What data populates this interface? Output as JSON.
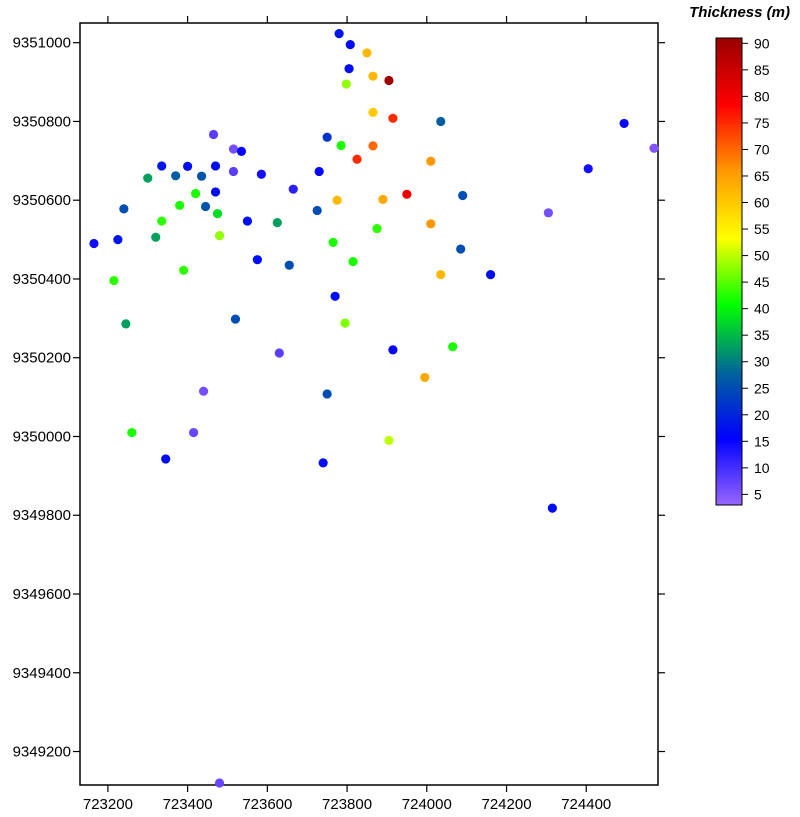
{
  "chart_data": {
    "type": "scatter",
    "xticks": [
      "723200",
      "723400",
      "723600",
      "723800",
      "724000",
      "724200",
      "724400"
    ],
    "yticks": [
      "9351000",
      "9350800",
      "9350600",
      "9350400",
      "9350200",
      "9350000",
      "9349800",
      "9349600",
      "9349400",
      "9349200"
    ],
    "xlim": [
      723130,
      724580
    ],
    "ylim": [
      9349115,
      9351050
    ],
    "colorbar": {
      "title": "Thickness (m)",
      "ticks": [
        "90",
        "85",
        "80",
        "75",
        "70",
        "65",
        "60",
        "55",
        "50",
        "45",
        "40",
        "35",
        "30",
        "25",
        "20",
        "15",
        "10",
        "5"
      ],
      "range": [
        3,
        91
      ],
      "colors": [
        "#9966FF",
        "#0000FF",
        "#006699",
        "#00FF00",
        "#FFFF00",
        "#FF9900",
        "#FF0000",
        "#990000"
      ]
    },
    "points": [
      {
        "x": 723780,
        "y": 9351023,
        "t": 18
      },
      {
        "x": 723808,
        "y": 9350995,
        "t": 17
      },
      {
        "x": 723850,
        "y": 9350974,
        "t": 62
      },
      {
        "x": 723805,
        "y": 9350934,
        "t": 17
      },
      {
        "x": 723865,
        "y": 9350915,
        "t": 62
      },
      {
        "x": 723905,
        "y": 9350904,
        "t": 90
      },
      {
        "x": 723798,
        "y": 9350895,
        "t": 48
      },
      {
        "x": 723865,
        "y": 9350823,
        "t": 60
      },
      {
        "x": 723915,
        "y": 9350808,
        "t": 75
      },
      {
        "x": 724035,
        "y": 9350800,
        "t": 27
      },
      {
        "x": 724495,
        "y": 9350795,
        "t": 15
      },
      {
        "x": 723465,
        "y": 9350767,
        "t": 8
      },
      {
        "x": 723750,
        "y": 9350760,
        "t": 22
      },
      {
        "x": 724570,
        "y": 9350732,
        "t": 5
      },
      {
        "x": 723785,
        "y": 9350739,
        "t": 42
      },
      {
        "x": 723865,
        "y": 9350738,
        "t": 70
      },
      {
        "x": 723515,
        "y": 9350730,
        "t": 6
      },
      {
        "x": 723535,
        "y": 9350724,
        "t": 15
      },
      {
        "x": 723825,
        "y": 9350704,
        "t": 75
      },
      {
        "x": 724010,
        "y": 9350699,
        "t": 66
      },
      {
        "x": 723335,
        "y": 9350687,
        "t": 18
      },
      {
        "x": 723400,
        "y": 9350686,
        "t": 17
      },
      {
        "x": 723470,
        "y": 9350687,
        "t": 17
      },
      {
        "x": 724405,
        "y": 9350680,
        "t": 14
      },
      {
        "x": 723515,
        "y": 9350673,
        "t": 8
      },
      {
        "x": 723730,
        "y": 9350673,
        "t": 15
      },
      {
        "x": 723300,
        "y": 9350656,
        "t": 33
      },
      {
        "x": 723370,
        "y": 9350662,
        "t": 27
      },
      {
        "x": 723435,
        "y": 9350661,
        "t": 26
      },
      {
        "x": 723585,
        "y": 9350666,
        "t": 14
      },
      {
        "x": 723665,
        "y": 9350628,
        "t": 12
      },
      {
        "x": 723470,
        "y": 9350621,
        "t": 17
      },
      {
        "x": 723420,
        "y": 9350617,
        "t": 42
      },
      {
        "x": 723950,
        "y": 9350615,
        "t": 80
      },
      {
        "x": 724090,
        "y": 9350612,
        "t": 25
      },
      {
        "x": 723890,
        "y": 9350602,
        "t": 64
      },
      {
        "x": 723775,
        "y": 9350600,
        "t": 62
      },
      {
        "x": 723445,
        "y": 9350584,
        "t": 26
      },
      {
        "x": 723380,
        "y": 9350587,
        "t": 42
      },
      {
        "x": 723240,
        "y": 9350578,
        "t": 25
      },
      {
        "x": 723725,
        "y": 9350574,
        "t": 25
      },
      {
        "x": 724305,
        "y": 9350568,
        "t": 6
      },
      {
        "x": 723475,
        "y": 9350566,
        "t": 38
      },
      {
        "x": 723335,
        "y": 9350547,
        "t": 43
      },
      {
        "x": 723550,
        "y": 9350547,
        "t": 17
      },
      {
        "x": 723625,
        "y": 9350543,
        "t": 33
      },
      {
        "x": 724010,
        "y": 9350540,
        "t": 66
      },
      {
        "x": 723875,
        "y": 9350528,
        "t": 43
      },
      {
        "x": 723320,
        "y": 9350506,
        "t": 33
      },
      {
        "x": 723480,
        "y": 9350510,
        "t": 48
      },
      {
        "x": 723225,
        "y": 9350500,
        "t": 18
      },
      {
        "x": 723765,
        "y": 9350493,
        "t": 42
      },
      {
        "x": 723165,
        "y": 9350490,
        "t": 14
      },
      {
        "x": 724085,
        "y": 9350476,
        "t": 25
      },
      {
        "x": 723575,
        "y": 9350449,
        "t": 17
      },
      {
        "x": 723815,
        "y": 9350444,
        "t": 42
      },
      {
        "x": 723655,
        "y": 9350435,
        "t": 25
      },
      {
        "x": 723390,
        "y": 9350422,
        "t": 43
      },
      {
        "x": 724035,
        "y": 9350411,
        "t": 62
      },
      {
        "x": 724160,
        "y": 9350411,
        "t": 17
      },
      {
        "x": 723215,
        "y": 9350396,
        "t": 43
      },
      {
        "x": 723770,
        "y": 9350356,
        "t": 17
      },
      {
        "x": 723520,
        "y": 9350298,
        "t": 25
      },
      {
        "x": 723245,
        "y": 9350286,
        "t": 33
      },
      {
        "x": 723795,
        "y": 9350288,
        "t": 47
      },
      {
        "x": 724065,
        "y": 9350228,
        "t": 42
      },
      {
        "x": 723915,
        "y": 9350220,
        "t": 15
      },
      {
        "x": 723630,
        "y": 9350212,
        "t": 8
      },
      {
        "x": 723995,
        "y": 9350150,
        "t": 64
      },
      {
        "x": 723440,
        "y": 9350115,
        "t": 6
      },
      {
        "x": 723750,
        "y": 9350108,
        "t": 25
      },
      {
        "x": 723260,
        "y": 9350010,
        "t": 42
      },
      {
        "x": 723415,
        "y": 9350010,
        "t": 7
      },
      {
        "x": 723905,
        "y": 9349990,
        "t": 50
      },
      {
        "x": 723345,
        "y": 9349943,
        "t": 17
      },
      {
        "x": 723740,
        "y": 9349933,
        "t": 17
      },
      {
        "x": 724315,
        "y": 9349818,
        "t": 17
      },
      {
        "x": 723480,
        "y": 9349120,
        "t": 7
      }
    ]
  }
}
